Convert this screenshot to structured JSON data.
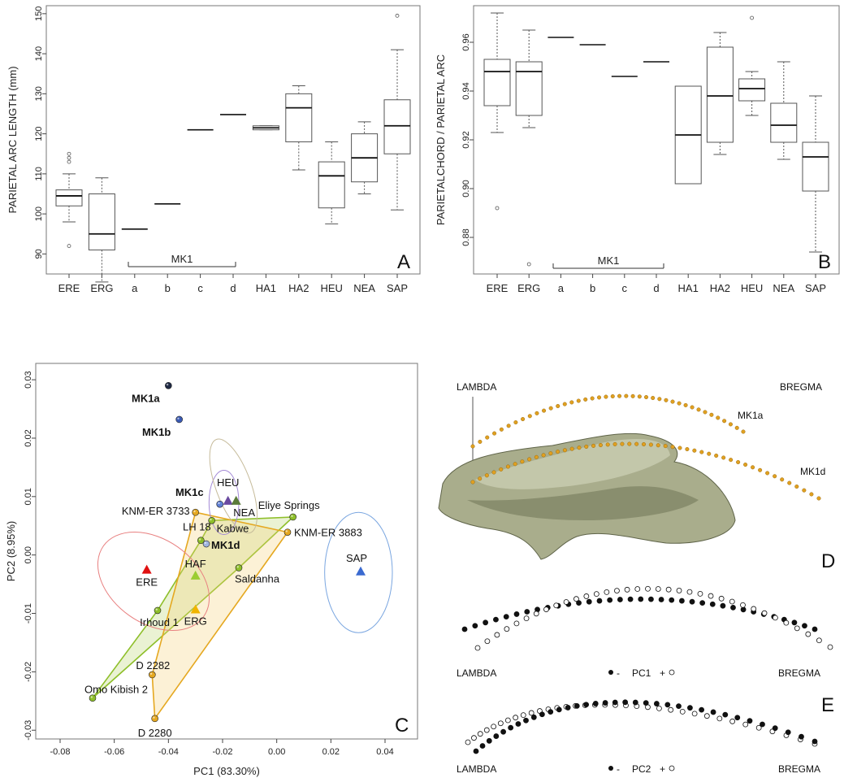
{
  "chart_data": [
    {
      "panel": "A",
      "type": "box",
      "ylabel": "PARIETAL ARC LENGTH (mm)",
      "yticks": [
        90,
        100,
        110,
        120,
        130,
        140,
        150
      ],
      "ylim": [
        85,
        152
      ],
      "group_bracket": {
        "label": "MK1",
        "from": "a",
        "to": "d"
      },
      "categories": [
        "ERE",
        "ERG",
        "a",
        "b",
        "c",
        "d",
        "HA1",
        "HA2",
        "HEU",
        "NEA",
        "SAP"
      ],
      "boxes": [
        {
          "cat": "ERE",
          "min": 98,
          "q1": 102,
          "median": 104.5,
          "q3": 106,
          "max": 110,
          "outliers": [
            92,
            113,
            114,
            115
          ]
        },
        {
          "cat": "ERG",
          "min": 83,
          "q1": 91,
          "median": 95,
          "q3": 105,
          "max": 109,
          "outliers": []
        },
        {
          "cat": "a",
          "single": 96.2
        },
        {
          "cat": "b",
          "single": 102.5
        },
        {
          "cat": "c",
          "single": 121
        },
        {
          "cat": "d",
          "single": 124.8
        },
        {
          "cat": "HA1",
          "min": 121,
          "q1": 121,
          "median": 121.5,
          "q3": 122,
          "max": 122,
          "outliers": []
        },
        {
          "cat": "HA2",
          "min": 111,
          "q1": 118,
          "median": 126.5,
          "q3": 130,
          "max": 132,
          "outliers": []
        },
        {
          "cat": "HEU",
          "min": 97.5,
          "q1": 101.5,
          "median": 109.5,
          "q3": 113,
          "max": 118,
          "outliers": []
        },
        {
          "cat": "NEA",
          "min": 105,
          "q1": 108,
          "median": 114,
          "q3": 120,
          "max": 123,
          "outliers": []
        },
        {
          "cat": "SAP",
          "min": 101,
          "q1": 115,
          "median": 122,
          "q3": 128.5,
          "max": 141,
          "outliers": [
            149.5
          ]
        }
      ]
    },
    {
      "panel": "B",
      "type": "box",
      "ylabel": "PARIETALCHORD / PARIETAL ARC",
      "yticks": [
        "0.88",
        "0.90",
        "0.92",
        "0.94",
        "0.96"
      ],
      "ylim": [
        0.865,
        0.975
      ],
      "group_bracket": {
        "label": "MK1",
        "from": "a",
        "to": "d"
      },
      "categories": [
        "ERE",
        "ERG",
        "a",
        "b",
        "c",
        "d",
        "HA1",
        "HA2",
        "HEU",
        "NEA",
        "SAP"
      ],
      "boxes": [
        {
          "cat": "ERE",
          "min": 0.923,
          "q1": 0.934,
          "median": 0.948,
          "q3": 0.953,
          "max": 0.972,
          "outliers": [
            0.892
          ]
        },
        {
          "cat": "ERG",
          "min": 0.925,
          "q1": 0.93,
          "median": 0.948,
          "q3": 0.952,
          "max": 0.965,
          "outliers": [
            0.869
          ]
        },
        {
          "cat": "a",
          "single": 0.962
        },
        {
          "cat": "b",
          "single": 0.959
        },
        {
          "cat": "c",
          "single": 0.946
        },
        {
          "cat": "d",
          "single": 0.952
        },
        {
          "cat": "HA1",
          "min": 0.902,
          "q1": 0.902,
          "median": 0.922,
          "q3": 0.942,
          "max": 0.942,
          "outliers": []
        },
        {
          "cat": "HA2",
          "min": 0.914,
          "q1": 0.919,
          "median": 0.938,
          "q3": 0.958,
          "max": 0.964,
          "outliers": []
        },
        {
          "cat": "HEU",
          "min": 0.93,
          "q1": 0.936,
          "median": 0.941,
          "q3": 0.945,
          "max": 0.948,
          "outliers": [
            0.97
          ]
        },
        {
          "cat": "NEA",
          "min": 0.912,
          "q1": 0.919,
          "median": 0.926,
          "q3": 0.935,
          "max": 0.952,
          "outliers": []
        },
        {
          "cat": "SAP",
          "min": 0.874,
          "q1": 0.899,
          "median": 0.913,
          "q3": 0.919,
          "max": 0.938,
          "outliers": []
        }
      ]
    },
    {
      "panel": "C",
      "type": "scatter",
      "xlabel": "PC1 (83.30%)",
      "ylabel": "PC2 (8.95%)",
      "xticks": [
        "-0.08",
        "-0.06",
        "-0.04",
        "-0.02",
        "0.00",
        "0.02",
        "0.04"
      ],
      "xtick_values": [
        -0.08,
        -0.06,
        -0.04,
        -0.02,
        0.0,
        0.02,
        0.04
      ],
      "yticks": [
        "-0.03",
        "-0.02",
        "-0.01",
        "0.00",
        "0.01",
        "0.02",
        "0.03"
      ],
      "ytick_values": [
        -0.03,
        -0.02,
        -0.01,
        0.0,
        0.01,
        0.02,
        0.03
      ],
      "xlim": [
        -0.089,
        0.052
      ],
      "ylim": [
        -0.0315,
        0.0328
      ],
      "points": [
        {
          "label": "MK1a",
          "x": -0.04,
          "y": 0.029,
          "group": "MK1",
          "color": "#1f2a44",
          "bold": true
        },
        {
          "label": "MK1b",
          "x": -0.036,
          "y": 0.0232,
          "group": "MK1",
          "color": "#3b5bb5",
          "bold": true
        },
        {
          "label": "MK1c",
          "x": -0.021,
          "y": 0.0087,
          "group": "MK1",
          "color": "#5f7fd6",
          "bold": true
        },
        {
          "label": "MK1d",
          "x": -0.026,
          "y": 0.0019,
          "group": "MK1",
          "color": "#9fb5e0",
          "bold": true
        },
        {
          "label": "KNM-ER 3733",
          "x": -0.03,
          "y": 0.0073,
          "group": "ERG",
          "color": "#e5a820"
        },
        {
          "label": "Kabwe",
          "x": -0.024,
          "y": 0.0059,
          "group": "HAF",
          "color": "#8ebf2a"
        },
        {
          "label": "LH 18",
          "x": -0.028,
          "y": 0.0025,
          "group": "HAF",
          "color": "#8ebf2a"
        },
        {
          "label": "Eliye Springs",
          "x": 0.006,
          "y": 0.0065,
          "group": "HAF",
          "color": "#8ebf2a"
        },
        {
          "label": "KNM-ER 3883",
          "x": 0.004,
          "y": 0.0039,
          "group": "ERG",
          "color": "#e5a820"
        },
        {
          "label": "Saldanha",
          "x": -0.014,
          "y": -0.0022,
          "group": "HAF",
          "color": "#8ebf2a"
        },
        {
          "label": "Irhoud 1",
          "x": -0.044,
          "y": -0.0095,
          "group": "HAF",
          "color": "#8ebf2a"
        },
        {
          "label": "D 2282",
          "x": -0.046,
          "y": -0.0205,
          "group": "ERG",
          "color": "#e5a820"
        },
        {
          "label": "Omo Kibish 2",
          "x": -0.068,
          "y": -0.0245,
          "group": "HAF",
          "color": "#8ebf2a"
        },
        {
          "label": "D 2280",
          "x": -0.045,
          "y": -0.028,
          "group": "ERG",
          "color": "#e5a820"
        }
      ],
      "group_means": [
        {
          "label": "ERE",
          "x": -0.048,
          "y": -0.0025,
          "color": "#e01010"
        },
        {
          "label": "HAF",
          "x": -0.03,
          "y": -0.0035,
          "color": "#9acd32"
        },
        {
          "label": "ERG",
          "x": -0.03,
          "y": -0.0093,
          "color": "#f0b400"
        },
        {
          "label": "HEU",
          "x": -0.018,
          "y": 0.0093,
          "color": "#6a4aa0"
        },
        {
          "label": "NEA",
          "x": -0.015,
          "y": 0.0093,
          "color": "#5a7a3a"
        },
        {
          "label": "SAP",
          "x": 0.031,
          "y": -0.0028,
          "color": "#3a6ad0"
        }
      ],
      "ellipses": [
        {
          "group": "ERE",
          "cx": -0.0455,
          "cy": -0.0045,
          "rx_units": 0.0155,
          "ry_units": 0.0105,
          "angle": -55,
          "color": "#e88080"
        },
        {
          "group": "HEU",
          "cx": -0.0195,
          "cy": 0.009,
          "rx_units": 0.0055,
          "ry_units": 0.0055,
          "angle": 0,
          "color": "#a48ad6"
        },
        {
          "group": "NEA",
          "cx": -0.016,
          "cy": 0.0118,
          "rx_units": 0.0065,
          "ry_units": 0.0085,
          "angle": -20,
          "color": "#c6bb9a"
        },
        {
          "group": "SAP",
          "cx": 0.0302,
          "cy": -0.003,
          "rx_units": 0.0125,
          "ry_units": 0.0103,
          "angle": 0,
          "color": "#7aa6e0"
        }
      ],
      "hulls": [
        {
          "group": "HAF",
          "stroke": "#8ebf2a",
          "fill": "rgba(170,205,80,0.25)",
          "points": [
            "Omo Kibish 2",
            "Irhoud 1",
            "LH 18",
            "Kabwe",
            "Eliye Springs",
            "Saldanha"
          ]
        },
        {
          "group": "ERG",
          "stroke": "#e5a820",
          "fill": "rgba(245,210,120,0.30)",
          "points": [
            "KNM-ER 3733",
            "KNM-ER 3883",
            "D 2280",
            "D 2282"
          ]
        }
      ]
    }
  ],
  "panel_letters": {
    "A": "A",
    "B": "B",
    "C": "C",
    "D": "D",
    "E": "E"
  },
  "panel_d": {
    "left_landmark": "LAMBDA",
    "right_landmark": "BREGMA",
    "curve1": "MK1a",
    "curve2": "MK1d",
    "curve_color": "#e0a020"
  },
  "panel_e": {
    "rows": [
      {
        "component": "PC1",
        "left": "LAMBDA",
        "right": "BREGMA",
        "minus": "-",
        "plus": "+"
      },
      {
        "component": "PC2",
        "left": "LAMBDA",
        "right": "BREGMA",
        "minus": "-",
        "plus": "+"
      }
    ]
  }
}
